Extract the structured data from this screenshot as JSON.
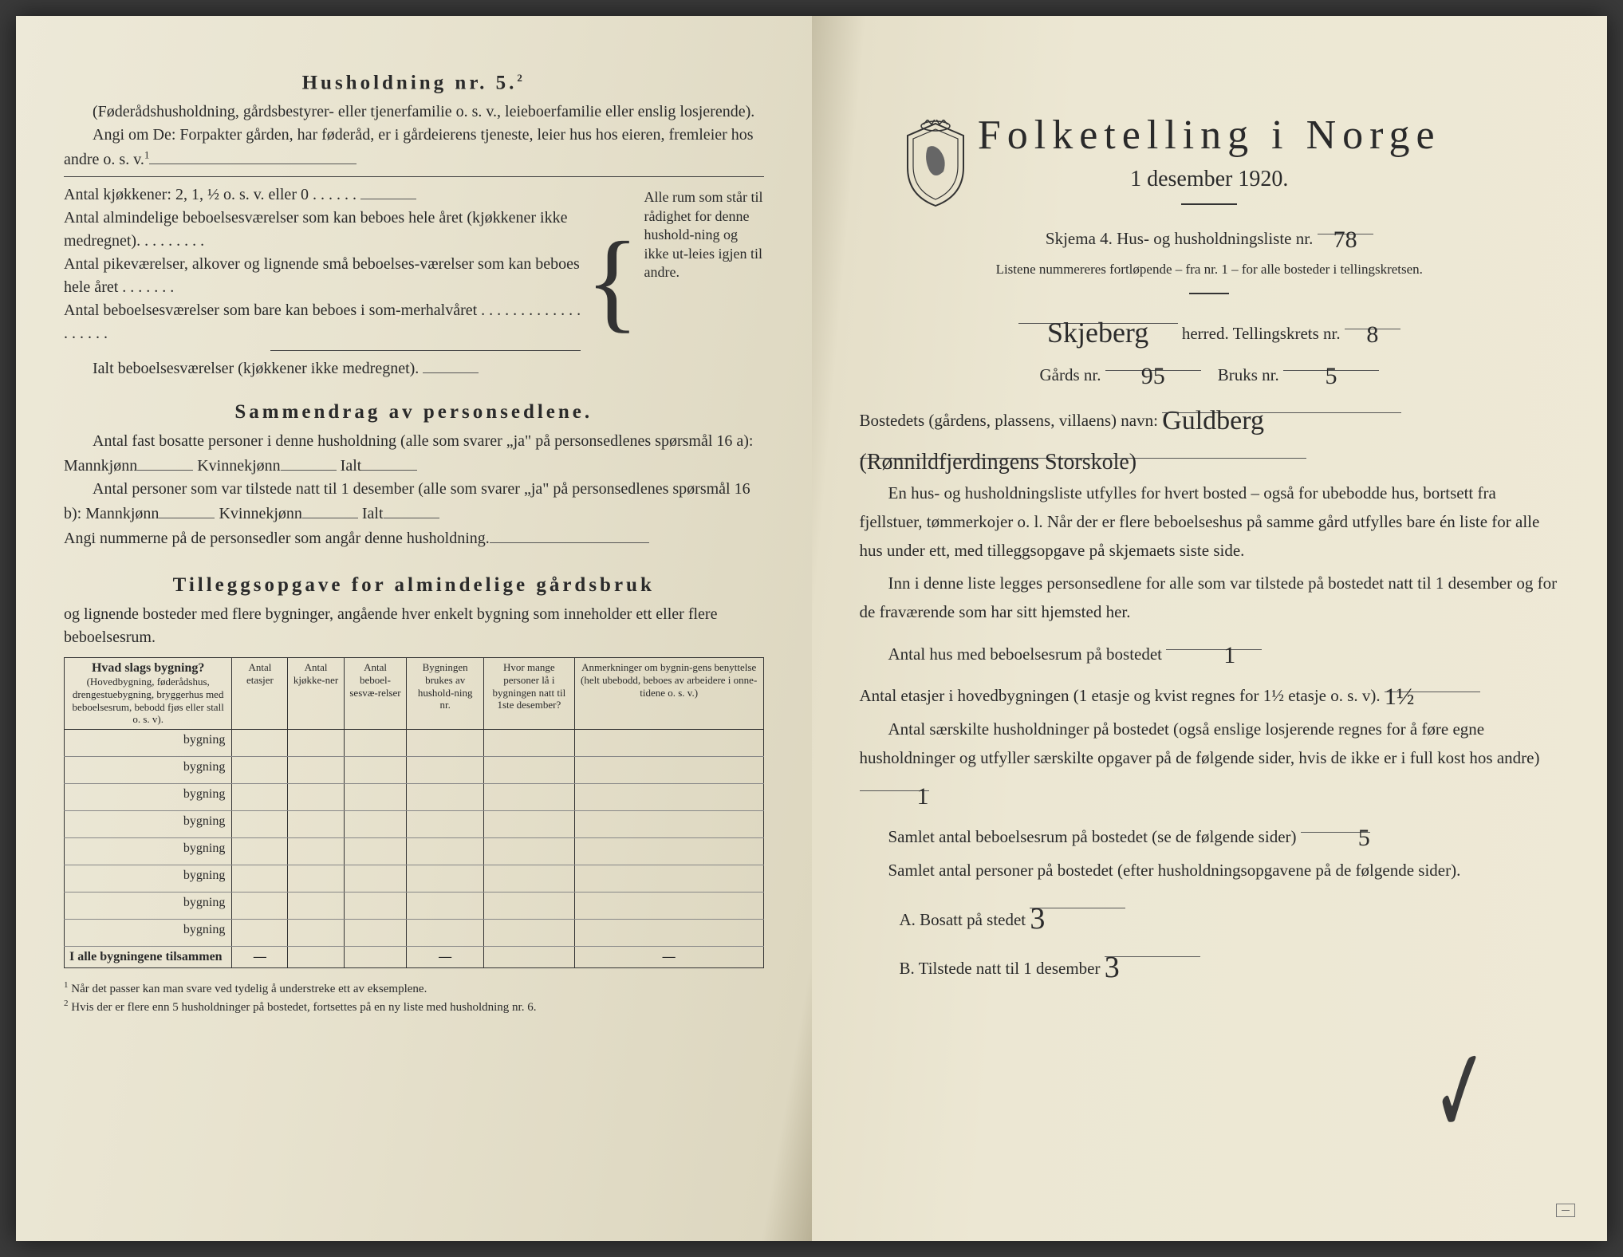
{
  "left": {
    "h5_title": "Husholdning nr. 5.",
    "h5_sup": "2",
    "h5_note": "(Føderådshusholdning, gårdsbestyrer- eller tjenerfamilie o. s. v., leieboerfamilie eller enslig losjerende).",
    "h5_angi": "Angi om De: Forpakter gården, har føderåd, er i gårdeierens tjeneste, leier hus hos eieren, fremleier hos andre o. s. v.",
    "h5_sup1": "1",
    "kj_line": "Antal kjøkkener: 2, 1, ½ o. s. v. eller 0 . . . . . .",
    "rooms": [
      "Antal almindelige beboelsesværelser som kan beboes hele året (kjøkkener ikke medregnet). . . . . . . . .",
      "Antal pikeværelser, alkover og lignende små beboelses-værelser som kan beboes hele året . . . . . . .",
      "Antal beboelsesværelser som bare kan beboes i som-merhalvåret . . . . . . . . . . . . . . . . . . ."
    ],
    "ialt_line": "Ialt beboelsesværelser  (kjøkkener ikke medregnet).",
    "brace_text": "Alle rum som står til rådighet for denne hushold-ning og ikke ut-leies igjen til andre.",
    "sammen_title": "Sammendrag av personsedlene.",
    "sammen_l1": "Antal fast bosatte personer i denne husholdning (alle som svarer „ja\" på personsedlenes spørsmål 16 a): Mannkjønn",
    "kvinne": "Kvinnekjønn",
    "ialt": "Ialt",
    "sammen_l2": "Antal personer som var tilstede natt til 1 desember (alle som svarer „ja\" på personsedlenes spørsmål 16 b): Mannkjønn",
    "angi_num": "Angi nummerne på de personsedler som angår denne husholdning.",
    "tillegg_title": "Tilleggsopgave for almindelige gårdsbruk",
    "tillegg_sub": "og lignende bosteder med flere bygninger, angående hver enkelt bygning som inneholder ett eller flere beboelsesrum.",
    "table": {
      "cols": [
        {
          "h": "Hvad slags bygning?",
          "sub": "(Hovedbygning, føderådshus, drengestuebygning, bryggerhus med beboelsesrum, bebodd fjøs eller stall o. s. v)."
        },
        {
          "h": "Antal etasjer",
          "sub": ""
        },
        {
          "h": "Antal kjøkke-ner",
          "sub": ""
        },
        {
          "h": "Antal beboel-sesvæ-relser",
          "sub": ""
        },
        {
          "h": "Bygningen brukes av hushold-ning nr.",
          "sub": ""
        },
        {
          "h": "Hvor mange personer lå i bygningen natt til 1ste desember?",
          "sub": ""
        },
        {
          "h": "Anmerkninger om bygnin-gens benyttelse (helt ubebodd, beboes av arbeidere i onne-tidene o. s. v.)",
          "sub": ""
        }
      ],
      "row_label": "bygning",
      "row_count": 8,
      "foot": "I alle bygningene tilsammen",
      "dash": "—"
    },
    "fn1_s": "1",
    "fn1": "Når det passer kan man svare ved tydelig å understreke ett av eksemplene.",
    "fn2_s": "2",
    "fn2": "Hvis der er flere enn 5 husholdninger på bostedet, fortsettes på en ny liste med husholdning nr. 6."
  },
  "right": {
    "title": "Folketelling  i  Norge",
    "date": "1 desember 1920.",
    "skjema": "Skjema 4.   Hus- og husholdningsliste nr.",
    "liste_nr": "78",
    "listene": "Listene nummereres fortløpende – fra nr. 1 – for alle bosteder i tellingskretsen.",
    "herred_hand": "Skjeberg",
    "herred_lbl": "herred.   Tellingskrets nr.",
    "krets_nr": "8",
    "gards_lbl": "Gårds nr.",
    "gards_nr": "95",
    "bruks_lbl": "Bruks nr.",
    "bruks_nr": "5",
    "bosted_lbl": "Bostedets (gårdens, plassens, villaens) navn:",
    "bosted_hand": "Guldberg",
    "bosted_hand2": "(Rønnildfjerdingens Storskole)",
    "p1": "En hus- og husholdningsliste utfylles for hvert bosted – også for ubebodde hus, bortsett fra fjellstuer, tømmerkojer o. l.  Når der er flere beboelseshus på samme gård utfylles bare én liste for alle hus under ett, med tilleggsopgave på skjemaets siste side.",
    "p2": "Inn i denne liste legges personsedlene for alle som var tilstede på bostedet natt til 1 desember og for de fraværende som har sitt hjemsted her.",
    "antal_hus_lbl": "Antal hus med beboelsesrum på bostedet",
    "antal_hus_v": "1",
    "etasjer_lbl": "Antal etasjer i hovedbygningen (1 etasje og kvist regnes for 1½ etasje o. s. v).",
    "etasjer_v": "1½",
    "sar_lbl": "Antal særskilte husholdninger på bostedet (også enslige losjerende regnes for å føre egne husholdninger og utfyller særskilte opgaver på de følgende sider, hvis de ikke er i full kost hos andre)",
    "sar_v": "1",
    "samlet_rum_lbl": "Samlet antal beboelsesrum på bostedet (se de følgende sider)",
    "samlet_rum_v": "5",
    "samlet_pers_lbl": "Samlet antal personer på bostedet (efter husholdningsopgavene på de følgende sider).",
    "a_lbl": "A.  Bosatt på stedet",
    "a_v": "3",
    "b_lbl": "B.  Tilstede natt til 1 desember",
    "b_v": "3"
  },
  "colors": {
    "ink": "#2a2a2a",
    "paper_left": "#e8e3cf",
    "paper_right": "#ece7d3"
  }
}
